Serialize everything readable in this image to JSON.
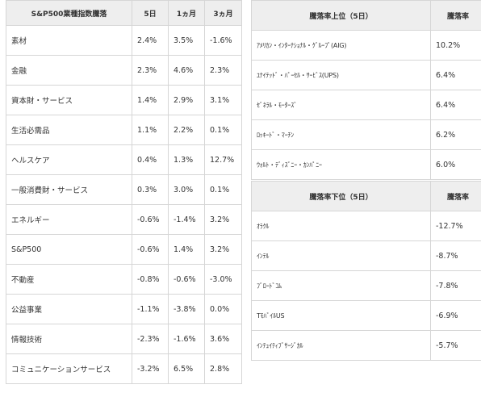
{
  "sector_table": {
    "headers": [
      "S&P500業種指数騰落",
      "5日",
      "1ヵ月",
      "3ヵ月"
    ],
    "rows": [
      {
        "name": "素材",
        "d5": "2.4%",
        "m1": "3.5%",
        "m3": "-1.6%"
      },
      {
        "name": "金融",
        "d5": "2.3%",
        "m1": "4.6%",
        "m3": "2.3%"
      },
      {
        "name": "資本財・サービス",
        "d5": "1.4%",
        "m1": "2.9%",
        "m3": "3.1%"
      },
      {
        "name": "生活必需品",
        "d5": "1.1%",
        "m1": "2.2%",
        "m3": "0.1%"
      },
      {
        "name": "ヘルスケア",
        "d5": "0.4%",
        "m1": "1.3%",
        "m3": "12.7%"
      },
      {
        "name": "一般消費財・サービス",
        "d5": "0.3%",
        "m1": "3.0%",
        "m3": "0.1%"
      },
      {
        "name": "エネルギー",
        "d5": "-0.6%",
        "m1": "-1.4%",
        "m3": "3.2%"
      },
      {
        "name": "S&P500",
        "d5": "-0.6%",
        "m1": "1.4%",
        "m3": "3.2%"
      },
      {
        "name": "不動産",
        "d5": "-0.8%",
        "m1": "-0.6%",
        "m3": "-3.0%"
      },
      {
        "name": "公益事業",
        "d5": "-1.1%",
        "m1": "-3.8%",
        "m3": "0.0%"
      },
      {
        "name": "情報技術",
        "d5": "-2.3%",
        "m1": "-1.6%",
        "m3": "3.6%"
      },
      {
        "name": "コミュニケーションサービス",
        "d5": "-3.2%",
        "m1": "6.5%",
        "m3": "2.8%"
      }
    ]
  },
  "top_table": {
    "headers": [
      "騰落率上位（5日）",
      "騰落率"
    ],
    "rows": [
      {
        "name": "ｱﾒﾘｶﾝ・ｲﾝﾀｰﾅｼｮﾅﾙ・ｸﾞﾙｰﾌﾟ(AIG)",
        "rate": "10.2%"
      },
      {
        "name": "ﾕﾅｲﾃｯﾄﾞ・ﾊﾟｰｾﾙ・ｻｰﾋﾞｽ(UPS)",
        "rate": "6.4%"
      },
      {
        "name": "ｾﾞﾈﾗﾙ・ﾓｰﾀｰｽﾞ",
        "rate": "6.4%"
      },
      {
        "name": "ﾛｯｷｰﾄﾞ・ﾏｰﾁﾝ",
        "rate": "6.2%"
      },
      {
        "name": "ｳｫﾙﾄ・ﾃﾞｨｽﾞﾆｰ・ｶﾝﾊﾟﾆｰ",
        "rate": "6.0%"
      }
    ]
  },
  "bottom_table": {
    "headers": [
      "騰落率下位（5日）",
      "騰落率"
    ],
    "rows": [
      {
        "name": "ｵﾗｸﾙ",
        "rate": "-12.7%"
      },
      {
        "name": "ｲﾝﾃﾙ",
        "rate": "-8.7%"
      },
      {
        "name": "ﾌﾞﾛｰﾄﾞｺﾑ",
        "rate": "-7.8%"
      },
      {
        "name": "TﾓﾊﾞｲﾙUS",
        "rate": "-6.9%"
      },
      {
        "name": "ｲﾝﾃｭｲﾃｨﾌﾞｻｰｼﾞｶﾙ",
        "rate": "-5.7%"
      }
    ]
  }
}
